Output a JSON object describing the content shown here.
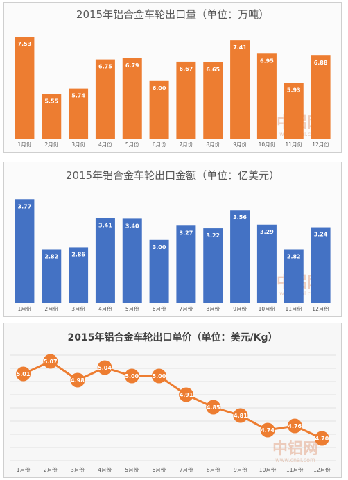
{
  "chart_data": [
    {
      "type": "bar",
      "title": "2015年铝合金车轮出口量（单位：万吨）",
      "categories": [
        "1月份",
        "2月份",
        "3月份",
        "4月份",
        "5月份",
        "6月份",
        "7月份",
        "8月份",
        "9月份",
        "10月份",
        "11月份",
        "12月份"
      ],
      "values": [
        7.53,
        5.55,
        5.74,
        6.75,
        6.79,
        6.0,
        6.67,
        6.65,
        7.41,
        6.95,
        5.93,
        6.88
      ],
      "labels": [
        "7.53",
        "5.55",
        "5.74",
        "6.75",
        "6.79",
        "6.00",
        "6.67",
        "6.65",
        "7.41",
        "6.95",
        "5.93",
        "6.88"
      ],
      "color": "#ed7d31",
      "grid": false,
      "watermark": "中铝网",
      "watermark_url": "www.cnal.com"
    },
    {
      "type": "bar",
      "title": "2015年铝合金车轮出口金额（单位：亿美元）",
      "categories": [
        "1月份",
        "2月份",
        "3月份",
        "4月份",
        "5月份",
        "6月份",
        "7月份",
        "8月份",
        "9月份",
        "10月份",
        "11月份",
        "12月份"
      ],
      "values": [
        3.77,
        2.82,
        2.86,
        3.41,
        3.4,
        3.0,
        3.27,
        3.22,
        3.56,
        3.29,
        2.82,
        3.24
      ],
      "labels": [
        "3.77",
        "2.82",
        "2.86",
        "3.41",
        "3.40",
        "3.00",
        "3.27",
        "3.22",
        "3.56",
        "3.29",
        "2.82",
        "3.24"
      ],
      "color": "#4472c4",
      "grid": false,
      "watermark": "中铝网",
      "watermark_url": "www.cnal.com"
    },
    {
      "type": "line",
      "title": "2015年铝合金车轮出口单价（单位：美元/Kg）",
      "categories": [
        "1月份",
        "2月份",
        "3月份",
        "4月份",
        "5月份",
        "6月份",
        "7月份",
        "8月份",
        "9月份",
        "10月份",
        "11月份",
        "12月份"
      ],
      "values": [
        5.01,
        5.07,
        4.98,
        5.04,
        5.0,
        5.0,
        4.91,
        4.85,
        4.81,
        4.74,
        4.76,
        4.7
      ],
      "labels": [
        "5.01",
        "5.07",
        "4.98",
        "5.04",
        "5.00",
        "5.00",
        "4.91",
        "4.85",
        "4.81",
        "4.74",
        "4.76",
        "4.70"
      ],
      "color": "#ed7d31",
      "grid": true,
      "watermark": "中铝网",
      "watermark_url": "www.cnal.com"
    }
  ]
}
